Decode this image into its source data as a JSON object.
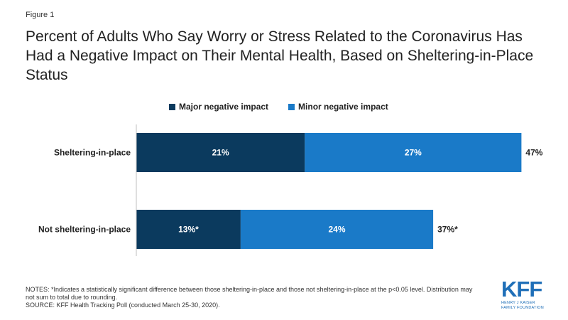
{
  "figure_label": "Figure 1",
  "chart_data": {
    "type": "bar",
    "orientation": "horizontal",
    "stacked": true,
    "title": "Percent of Adults Who Say Worry or Stress Related to the Coronavirus Has Had a Negative Impact on Their Mental Health, Based on Sheltering-in-Place Status",
    "categories": [
      "Sheltering-in-place",
      "Not sheltering-in-place"
    ],
    "series": [
      {
        "name": "Major negative impact",
        "color": "#0b3a5e",
        "values": [
          21,
          13
        ],
        "labels": [
          "21%",
          "13%*"
        ]
      },
      {
        "name": "Minor negative impact",
        "color": "#1a7ac8",
        "values": [
          27,
          24
        ],
        "labels": [
          "27%",
          "24%"
        ]
      }
    ],
    "totals": [
      47,
      37
    ],
    "total_labels": [
      "47%",
      "37%*"
    ],
    "xlim": [
      0,
      50
    ],
    "grid": false,
    "legend_position": "top"
  },
  "notes": {
    "line1": "NOTES: *Indicates a statistically significant difference between those sheltering-in-place and those not sheltering-in-place at the p<0.05 level.  Distribution may not sum to total due to rounding.",
    "line2": "SOURCE: KFF Health Tracking Poll (conducted March 25-30, 2020)."
  },
  "logo": {
    "mark": "KFF",
    "sub_line1": "HENRY J KAISER",
    "sub_line2": "FAMILY FOUNDATION"
  }
}
